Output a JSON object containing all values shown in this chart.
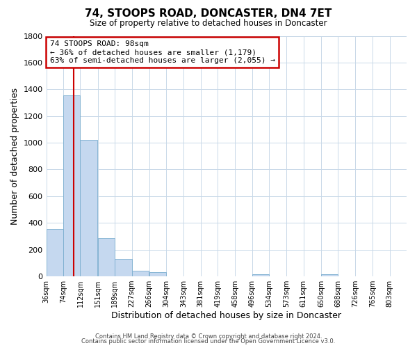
{
  "title": "74, STOOPS ROAD, DONCASTER, DN4 7ET",
  "subtitle": "Size of property relative to detached houses in Doncaster",
  "xlabel": "Distribution of detached houses by size in Doncaster",
  "ylabel": "Number of detached properties",
  "bar_labels": [
    "36sqm",
    "74sqm",
    "112sqm",
    "151sqm",
    "189sqm",
    "227sqm",
    "266sqm",
    "304sqm",
    "343sqm",
    "381sqm",
    "419sqm",
    "458sqm",
    "496sqm",
    "534sqm",
    "573sqm",
    "611sqm",
    "650sqm",
    "688sqm",
    "726sqm",
    "765sqm",
    "803sqm"
  ],
  "bar_values": [
    355,
    1355,
    1020,
    285,
    130,
    43,
    30,
    0,
    0,
    0,
    0,
    0,
    18,
    0,
    0,
    0,
    18,
    0,
    0,
    0,
    0
  ],
  "bar_color_fill": "#c5d8ef",
  "bar_color_edge": "#7aadcf",
  "property_line_x": 98,
  "bin_starts": [
    36,
    74,
    112,
    151,
    189,
    227,
    266,
    304,
    343,
    381,
    419,
    458,
    496,
    534,
    573,
    611,
    650,
    688,
    726,
    765,
    803
  ],
  "bin_width": 38,
  "ylim": [
    0,
    1800
  ],
  "yticks": [
    0,
    200,
    400,
    600,
    800,
    1000,
    1200,
    1400,
    1600,
    1800
  ],
  "annotation_title": "74 STOOPS ROAD: 98sqm",
  "annotation_line1": "← 36% of detached houses are smaller (1,179)",
  "annotation_line2": "63% of semi-detached houses are larger (2,055) →",
  "annotation_box_color": "#ffffff",
  "annotation_box_edge": "#cc0000",
  "vline_color": "#cc0000",
  "footer1": "Contains HM Land Registry data © Crown copyright and database right 2024.",
  "footer2": "Contains public sector information licensed under the Open Government Licence v3.0.",
  "background_color": "#ffffff",
  "grid_color": "#c8d8e8"
}
